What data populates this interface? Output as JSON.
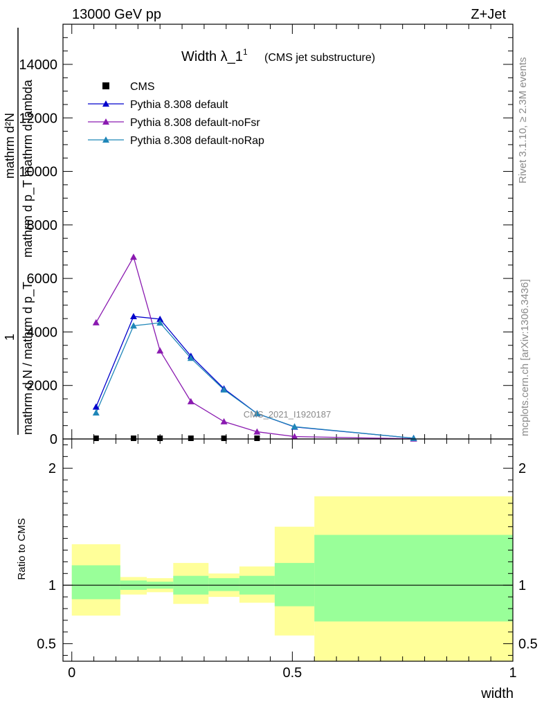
{
  "header": {
    "energy": "13000 GeV pp",
    "process": "Z+Jet"
  },
  "side_text": {
    "rivet": "Rivet 3.1.10, ≥ 2.3M events",
    "mcplots": "mcplots.cern.ch [arXiv:1306.3436]"
  },
  "chart_data": [
    {
      "type": "line",
      "title": "Width λ_1",
      "title_superscript": "1",
      "subtitle": "(CMS jet substructure)",
      "watermark": "CMS_2021_I1920187",
      "ylabel_top": "mathrm d²N",
      "ylabel_top_denominator": "mathrm d p_T mathrm d lambda",
      "ylabel_bottom_numerator": "1",
      "ylabel_bottom": "mathrm d N / mathrm d p_T",
      "ylim": [
        0,
        15500
      ],
      "xlim": [
        -0.02,
        1.0
      ],
      "yticks": [
        0,
        2000,
        4000,
        6000,
        8000,
        10000,
        12000,
        14000
      ],
      "ytick_labels": [
        "0",
        "2000",
        "4000",
        "6000",
        "8000",
        "10000",
        "12000",
        "14000"
      ],
      "legend_position": "top-left",
      "grid": false,
      "series": [
        {
          "name": "CMS",
          "color": "#000000",
          "marker": "square",
          "x": [
            0.055,
            0.14,
            0.2,
            0.27,
            0.345,
            0.42
          ],
          "y": [
            10,
            10,
            10,
            10,
            10,
            10
          ]
        },
        {
          "name": "Pythia 8.308 default",
          "color": "#0000cc",
          "marker": "triangle",
          "x": [
            0.055,
            0.14,
            0.2,
            0.27,
            0.345,
            0.42,
            0.505,
            0.775
          ],
          "y": [
            1200,
            4580,
            4480,
            3100,
            1880,
            950,
            450,
            30
          ]
        },
        {
          "name": "Pythia 8.308 default-noFsr",
          "color": "#8a1ab0",
          "marker": "triangle",
          "x": [
            0.055,
            0.14,
            0.2,
            0.27,
            0.345,
            0.42,
            0.505,
            0.775
          ],
          "y": [
            4350,
            6800,
            3300,
            1400,
            650,
            270,
            90,
            5
          ]
        },
        {
          "name": "Pythia 8.308 default-noRap",
          "color": "#1f86b8",
          "marker": "triangle",
          "x": [
            0.055,
            0.14,
            0.2,
            0.27,
            0.345,
            0.42,
            0.505,
            0.775
          ],
          "y": [
            980,
            4230,
            4340,
            3020,
            1840,
            950,
            460,
            30
          ]
        }
      ]
    },
    {
      "type": "area",
      "ylabel": "Ratio to CMS",
      "xlabel": "width",
      "xlim": [
        -0.02,
        1.0
      ],
      "ylim": [
        0.35,
        2.25
      ],
      "xticks": [
        0,
        0.5,
        1
      ],
      "xtick_labels": [
        "0",
        "0.5",
        "1"
      ],
      "yticks": [
        0.5,
        1,
        2
      ],
      "ytick_labels": [
        "0.5",
        "1",
        "2"
      ],
      "reference_line": 1,
      "bins": [
        {
          "lo": 0.0,
          "hi": 0.11,
          "stat": [
            0.88,
            1.17
          ],
          "total": [
            0.74,
            1.35
          ]
        },
        {
          "lo": 0.11,
          "hi": 0.17,
          "stat": [
            0.96,
            1.04
          ],
          "total": [
            0.92,
            1.07
          ]
        },
        {
          "lo": 0.17,
          "hi": 0.23,
          "stat": [
            0.97,
            1.03
          ],
          "total": [
            0.94,
            1.06
          ]
        },
        {
          "lo": 0.23,
          "hi": 0.31,
          "stat": [
            0.92,
            1.08
          ],
          "total": [
            0.84,
            1.19
          ]
        },
        {
          "lo": 0.31,
          "hi": 0.38,
          "stat": [
            0.95,
            1.06
          ],
          "total": [
            0.9,
            1.1
          ]
        },
        {
          "lo": 0.38,
          "hi": 0.46,
          "stat": [
            0.92,
            1.08
          ],
          "total": [
            0.85,
            1.16
          ]
        },
        {
          "lo": 0.46,
          "hi": 0.55,
          "stat": [
            0.82,
            1.19
          ],
          "total": [
            0.57,
            1.5
          ]
        },
        {
          "lo": 0.55,
          "hi": 1.0,
          "stat": [
            0.69,
            1.43
          ],
          "total": [
            0.35,
            1.76
          ]
        }
      ],
      "colors": {
        "stat": "#99ff99",
        "total": "#ffff99",
        "axis": "#000000"
      }
    }
  ]
}
